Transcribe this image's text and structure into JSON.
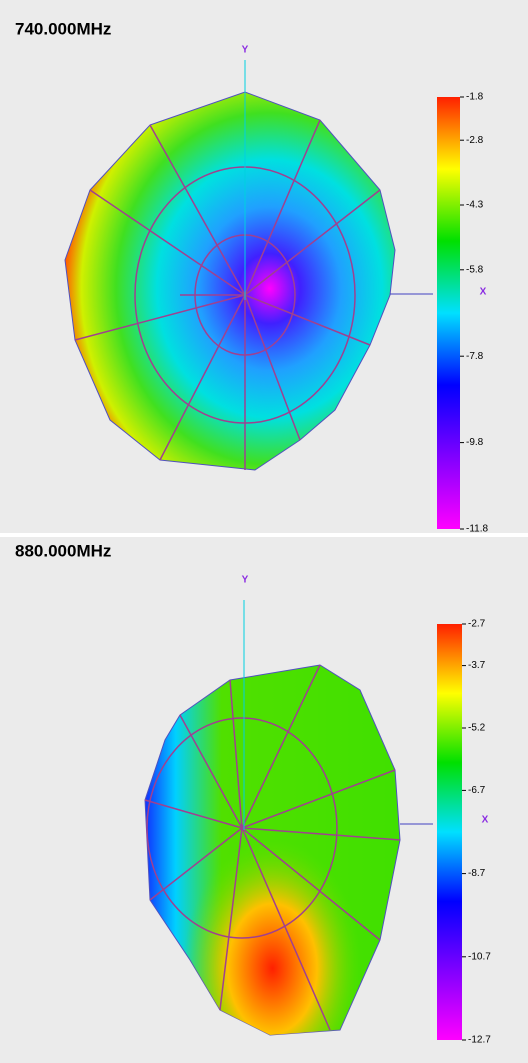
{
  "chart_data": [
    {
      "type": "radiation-pattern",
      "title": "740.000MHz",
      "y_label": "Y",
      "x_label": "X",
      "colorbar_ticks": [
        -1.8,
        -2.8,
        -4.3,
        -5.8,
        -7.8,
        -9.8,
        -11.8
      ],
      "colormap": [
        "#ff2000",
        "#ffff00",
        "#00e000",
        "#00e0ff",
        "#0000ff",
        "#8000ff",
        "#ff00ff"
      ]
    },
    {
      "type": "radiation-pattern",
      "title": "880.000MHz",
      "y_label": "Y",
      "x_label": "X",
      "colorbar_ticks": [
        -2.7,
        -3.7,
        -5.2,
        -6.7,
        -8.7,
        -10.7,
        -12.7
      ],
      "colormap": [
        "#ff2000",
        "#ffff00",
        "#00e000",
        "#00e0ff",
        "#0000ff",
        "#8000ff",
        "#ff00ff"
      ]
    }
  ]
}
